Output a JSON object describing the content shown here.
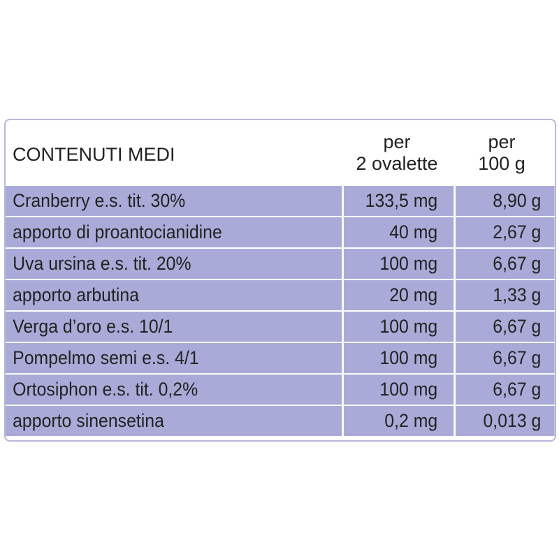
{
  "table": {
    "header": [
      "CONTENUTI MEDI",
      [
        "per",
        "2 ovalette"
      ],
      [
        "per",
        "100 g"
      ]
    ],
    "rows": [
      [
        "Cranberry e.s. tit. 30%",
        "133,5 mg",
        "8,90 g"
      ],
      [
        "apporto di proantocianidine",
        "40 mg",
        "2,67 g"
      ],
      [
        "Uva ursina e.s. tit. 20%",
        "100 mg",
        "6,67 g"
      ],
      [
        "apporto arbutina",
        "20 mg",
        "1,33 g"
      ],
      [
        "Verga d’oro e.s. 10/1",
        "100 mg",
        "6,67 g"
      ],
      [
        "Pompelmo semi e.s. 4/1",
        "100 mg",
        "6,67 g"
      ],
      [
        "Ortosiphon e.s. tit. 0,2%",
        "100 mg",
        "6,67 g"
      ],
      [
        "apporto sinensetina",
        "0,2 mg",
        "0,013 g"
      ]
    ]
  }
}
